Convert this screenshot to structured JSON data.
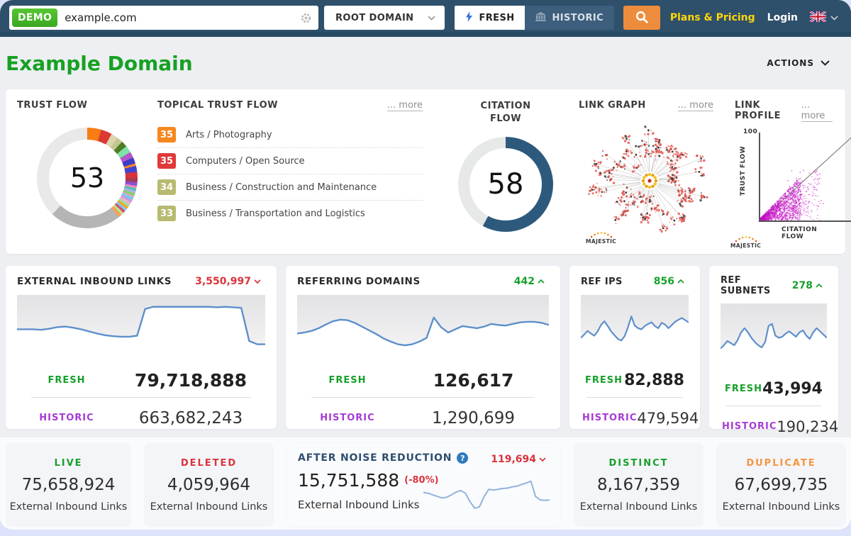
{
  "nav": {
    "demo_badge": "DEMO",
    "search_value": "example.com",
    "root_domain_label": "ROOT DOMAIN",
    "fresh_tab": "FRESH",
    "historic_tab": "HISTORIC",
    "plans_pricing": "Plans & Pricing",
    "login": "Login"
  },
  "header": {
    "title": "Example Domain",
    "actions": "ACTIONS"
  },
  "overview": {
    "trust_flow": {
      "title": "TRUST FLOW",
      "value": "53"
    },
    "topical_trust_flow": {
      "title": "TOPICAL TRUST FLOW",
      "more": "... more",
      "items": [
        {
          "score": "35",
          "color": "#f6871f",
          "label": "Arts / Photography"
        },
        {
          "score": "35",
          "color": "#e03a38",
          "label": "Computers / Open Source"
        },
        {
          "score": "34",
          "color": "#b8ba70",
          "label": "Business / Construction and Maintenance"
        },
        {
          "score": "33",
          "color": "#b8ba70",
          "label": "Business / Transportation and Logistics"
        }
      ]
    },
    "citation_flow": {
      "title": "CITATION FLOW",
      "value": "58"
    },
    "link_graph": {
      "title": "LINK GRAPH",
      "more": "... more",
      "logo": "MAJESTIC"
    },
    "link_profile": {
      "title": "LINK PROFILE",
      "more": "... more",
      "logo": "MAJESTIC",
      "ylabel": "TRUST FLOW",
      "xlabel": "CITATION FLOW",
      "ymax": "100",
      "xmax": "100"
    }
  },
  "metrics": {
    "fresh_label": "FRESH",
    "historic_label": "HISTORIC",
    "cards": [
      {
        "title": "EXTERNAL INBOUND LINKS",
        "trend": "3,550,997",
        "trend_dir": "down",
        "fresh": "79,718,888",
        "historic": "663,682,243"
      },
      {
        "title": "REFERRING DOMAINS",
        "trend": "442",
        "trend_dir": "up",
        "fresh": "126,617",
        "historic": "1,290,699"
      },
      {
        "title": "REF IPS",
        "trend": "856",
        "trend_dir": "up",
        "fresh": "82,888",
        "historic": "479,594"
      },
      {
        "title": "REF SUBNETS",
        "trend": "278",
        "trend_dir": "up",
        "fresh": "43,994",
        "historic": "190,234"
      }
    ]
  },
  "summary": {
    "live": {
      "title": "LIVE",
      "value": "75,658,924",
      "subtitle": "External Inbound Links"
    },
    "deleted": {
      "title": "DELETED",
      "value": "4,059,964",
      "subtitle": "External Inbound Links"
    },
    "noise": {
      "title": "AFTER NOISE REDUCTION",
      "help": "?",
      "trend": "119,694",
      "trend_dir": "down",
      "value": "15,751,588",
      "pct": "(-80%)",
      "subtitle": "External Inbound Links"
    },
    "distinct": {
      "title": "DISTINCT",
      "value": "8,167,359",
      "subtitle": "External Inbound Links"
    },
    "duplicate": {
      "title": "DUPLICATE",
      "value": "67,699,735",
      "subtitle": "External Inbound Links"
    }
  },
  "chart_data": {
    "donuts": {
      "trust": {
        "type": "donut",
        "title": "TRUST FLOW",
        "value": 53,
        "max": 100,
        "segments": [
          [
            "#f87d13",
            16
          ],
          [
            "#dc3a31",
            29
          ],
          [
            "#ddd7b0",
            37
          ],
          [
            "#c6c78e",
            44
          ],
          [
            "#4e7c27",
            51
          ],
          [
            "#7fe3a5",
            59
          ],
          [
            "#b356c9",
            66
          ],
          [
            "#3c3cc6",
            73
          ],
          [
            "#f28a2a",
            76
          ],
          [
            "#4444d0",
            83
          ],
          [
            "#d8323c",
            90
          ],
          [
            "#a93a50",
            95
          ],
          [
            "#8a4fd0",
            99
          ],
          [
            "#e88cc0",
            102
          ],
          [
            "#55c1b0",
            105
          ],
          [
            "#aab3e9",
            108
          ],
          [
            "#86d25b",
            111
          ],
          [
            "#e8a0d0",
            113
          ],
          [
            "#6fd0e8",
            116
          ],
          [
            "#c49ae0",
            119
          ],
          [
            "#f2b0c8",
            122
          ],
          [
            "#99e0a8",
            125
          ],
          [
            "#f5a623",
            128
          ],
          [
            "#7ec8f0",
            131
          ],
          [
            "#d94f6b",
            134
          ],
          [
            "#b8e986",
            137
          ],
          [
            "#f5a05a",
            141
          ],
          [
            "#b5b5b5",
            224
          ],
          [
            "#e9e9e9",
            360
          ]
        ]
      },
      "citation": {
        "type": "donut",
        "title": "CITATION FLOW",
        "value": 58,
        "max": 100,
        "segments": [
          [
            "#2d5a7c",
            208.8
          ],
          [
            "#e7e8e8",
            360
          ]
        ]
      }
    },
    "sparklines": [
      {
        "type": "line",
        "name": "EXTERNAL INBOUND LINKS trend",
        "stroke": "#5e8fcb",
        "width": 2.4,
        "fill": "#ffffff",
        "values": [
          48,
          48,
          48,
          47,
          49,
          52,
          53,
          51,
          48,
          44,
          40,
          37,
          35,
          34,
          34,
          36,
          86,
          90,
          90,
          90,
          90,
          90,
          90,
          90,
          90,
          89,
          90,
          89,
          88,
          26,
          20,
          20
        ]
      },
      {
        "type": "line",
        "name": "REFERRING DOMAINS trend",
        "stroke": "#5e8fcb",
        "width": 2.4,
        "fill": "#ffffff",
        "values": [
          40,
          42,
          45,
          50,
          57,
          63,
          66,
          65,
          60,
          53,
          46,
          39,
          31,
          25,
          20,
          18,
          20,
          25,
          32,
          70,
          52,
          42,
          48,
          54,
          52,
          50,
          53,
          58,
          56,
          55,
          58,
          61,
          62,
          62,
          60,
          56
        ]
      },
      {
        "type": "line",
        "name": "REF IPS trend",
        "stroke": "#5e8fcb",
        "width": 2.2,
        "fill": "#ffffff",
        "values": [
          32,
          38,
          45,
          40,
          36,
          44,
          56,
          63,
          54,
          44,
          37,
          30,
          27,
          35,
          52,
          72,
          55,
          50,
          48,
          54,
          58,
          61,
          54,
          50,
          60,
          57,
          50,
          56,
          62,
          66,
          69,
          65,
          61
        ]
      },
      {
        "type": "line",
        "name": "REF SUBNETS trend",
        "stroke": "#5e8fcb",
        "width": 2.2,
        "fill": "#ffffff",
        "values": [
          28,
          34,
          42,
          38,
          34,
          44,
          58,
          66,
          58,
          48,
          40,
          34,
          30,
          40,
          70,
          74,
          52,
          48,
          50,
          56,
          60,
          55,
          50,
          58,
          62,
          52,
          46,
          58,
          66,
          60,
          54,
          48
        ]
      },
      {
        "type": "line",
        "name": "AFTER NOISE REDUCTION trend",
        "stroke": "#8fb3dc",
        "width": 2,
        "fill": null,
        "values": [
          52,
          50,
          46,
          42,
          38,
          40,
          46,
          53,
          57,
          50,
          28,
          12,
          16,
          42,
          60,
          58,
          60,
          62,
          63,
          66,
          68,
          72,
          76,
          80,
          42,
          33,
          32,
          33
        ]
      }
    ],
    "link_graph_viz": {
      "type": "network",
      "seed": 7,
      "branches": 64,
      "node_color": "#e2564e",
      "center_color": "#f2c21b"
    },
    "link_profile_viz": {
      "type": "scatter",
      "seed": 11,
      "dense": 950,
      "spray": 240,
      "outliers": 26,
      "color": "#c50fc5",
      "xlabel": "CITATION FLOW",
      "ylabel": "TRUST FLOW",
      "xlim": [
        0,
        100
      ],
      "ylim": [
        0,
        100
      ]
    }
  }
}
